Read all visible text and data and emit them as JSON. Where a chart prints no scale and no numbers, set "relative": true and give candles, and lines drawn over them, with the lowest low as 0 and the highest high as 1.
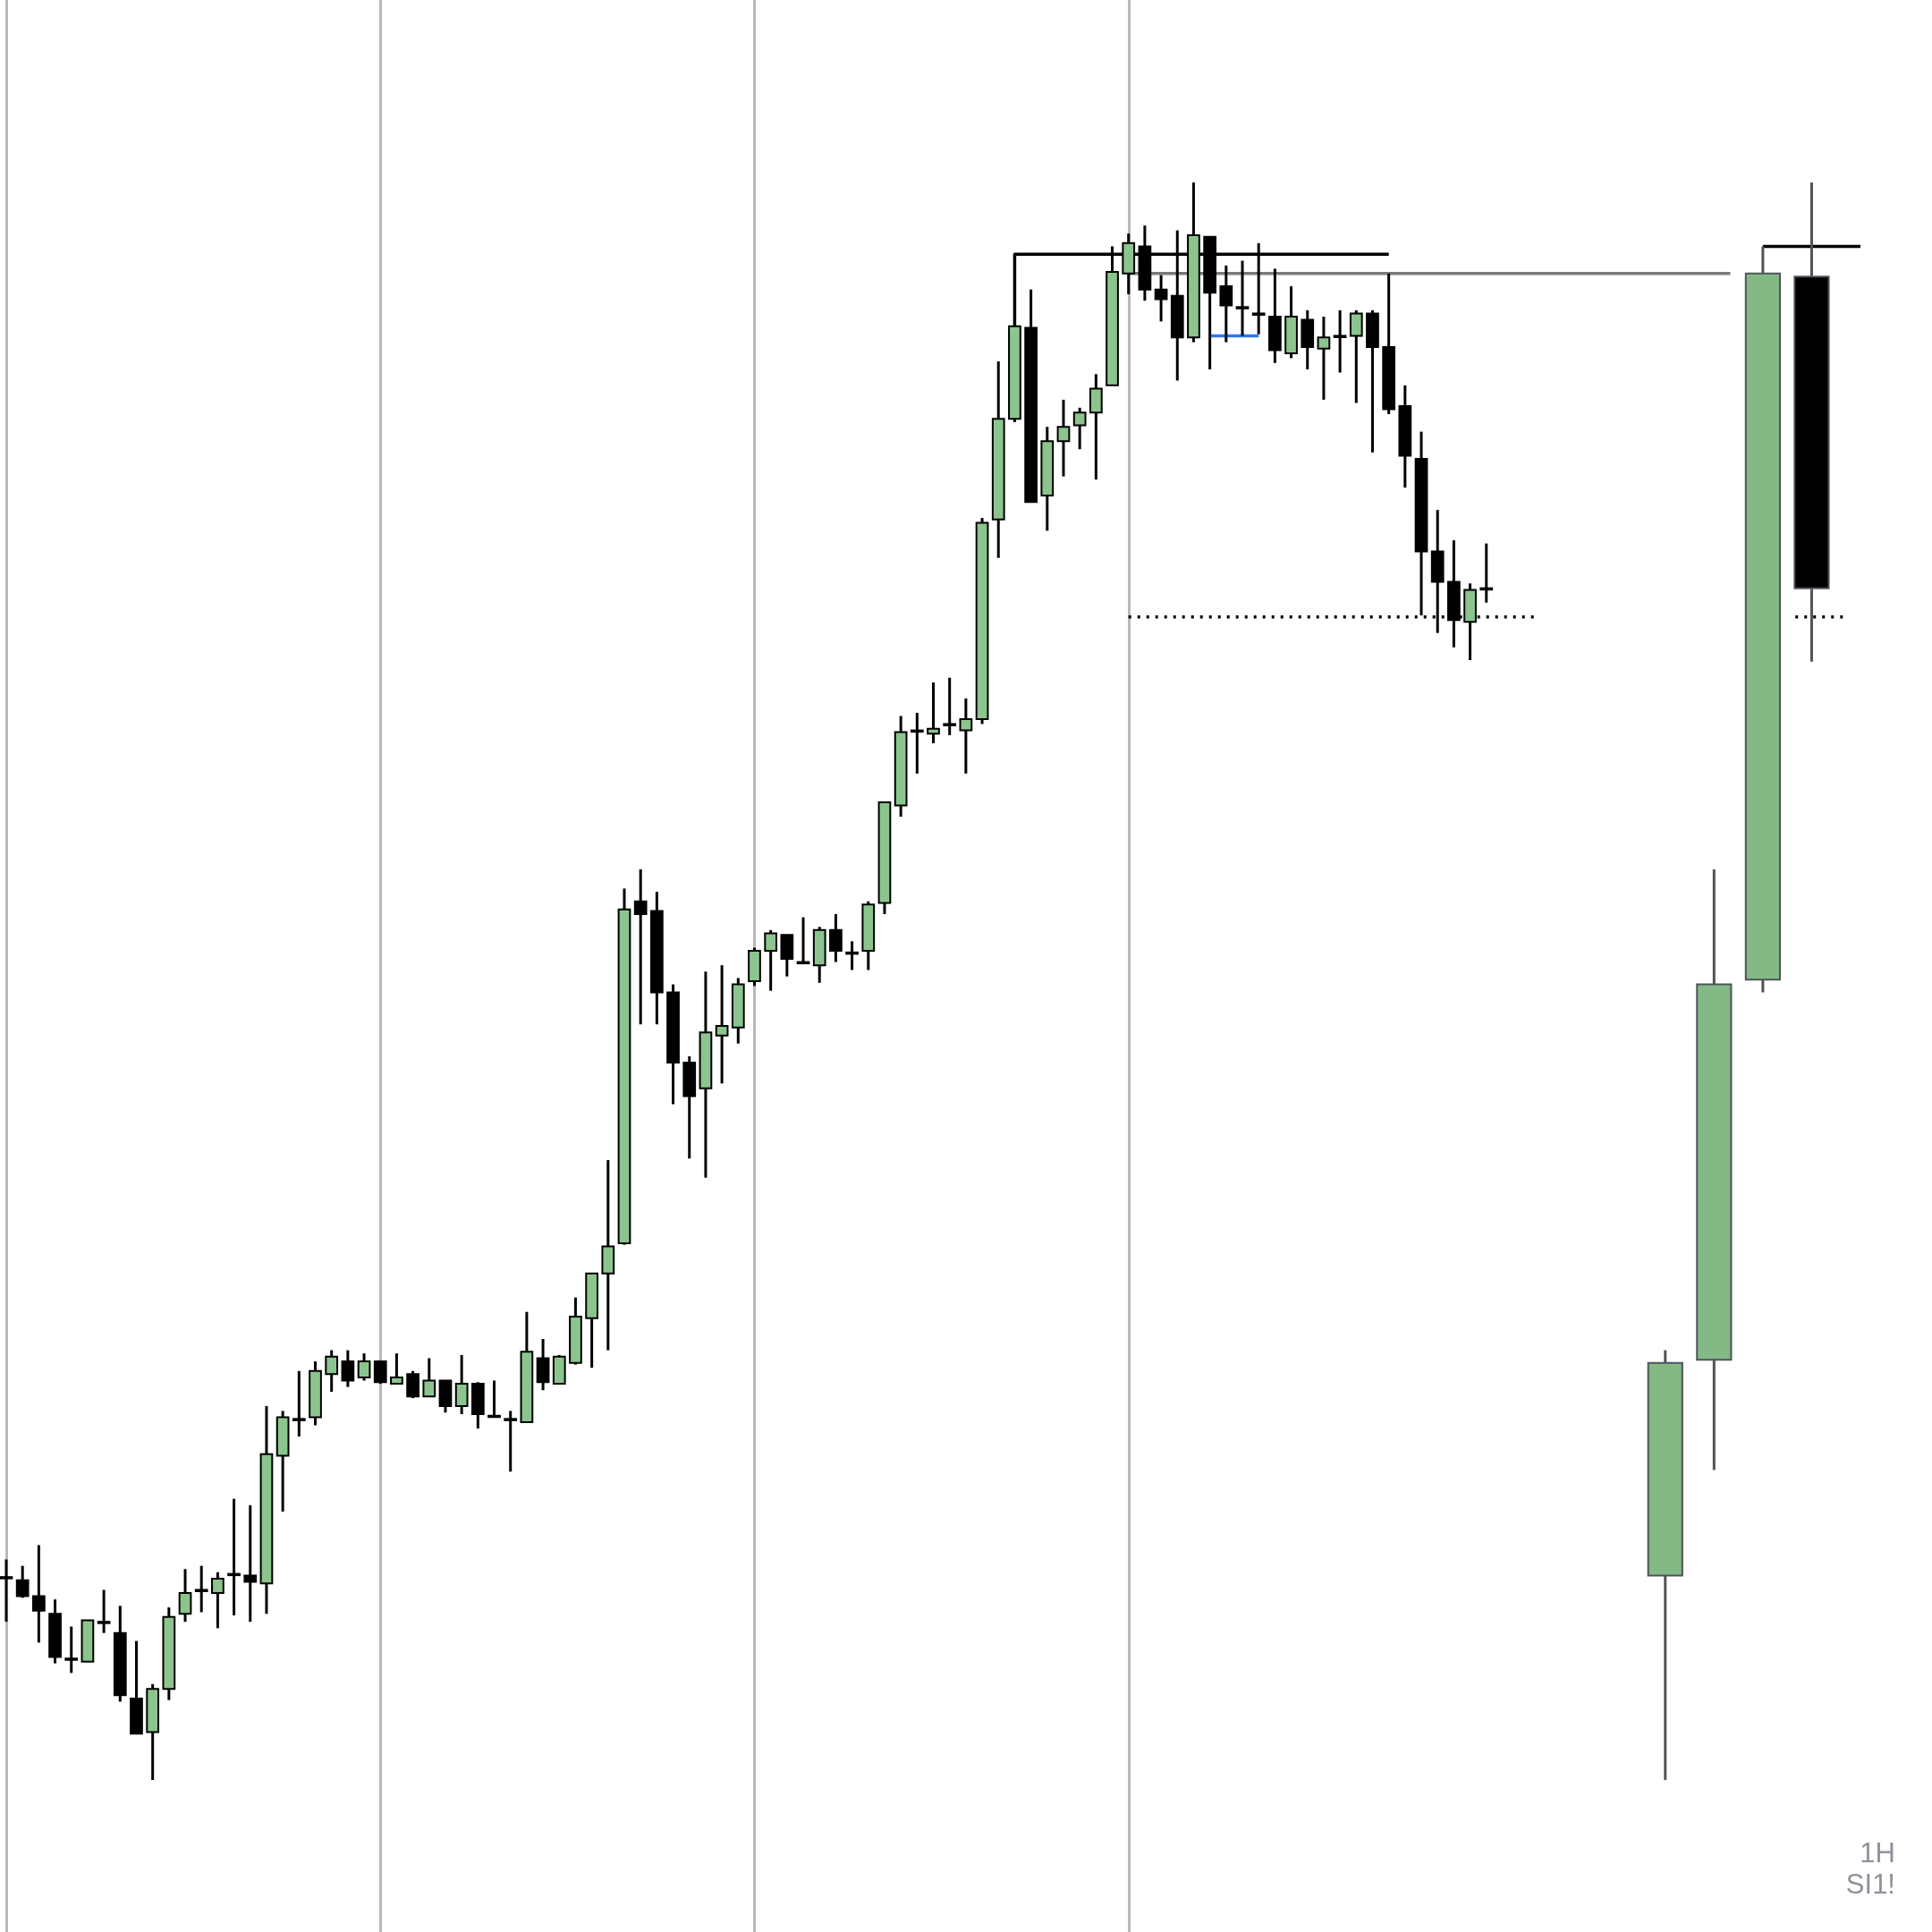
{
  "chart_data": {
    "type": "candlestick",
    "relative": true,
    "grid": "x",
    "categories": [
      null,
      null,
      null,
      null,
      null,
      null,
      null,
      null,
      null,
      null,
      null,
      null,
      null,
      null,
      null,
      null,
      null,
      null,
      null,
      null,
      null,
      null,
      null,
      null,
      null,
      null,
      null,
      null,
      null,
      null,
      null,
      null,
      null,
      null,
      null,
      null,
      null,
      null,
      null,
      null,
      null,
      null,
      null,
      null,
      null,
      null,
      null,
      null,
      null,
      null,
      null,
      null,
      null,
      null,
      null,
      null,
      null,
      null,
      null,
      null,
      null,
      null,
      null,
      null,
      null,
      null,
      null,
      null,
      null,
      null,
      null,
      null,
      null,
      null,
      null,
      null,
      null,
      null,
      null,
      null,
      null,
      null,
      null,
      null,
      null,
      null,
      null,
      null,
      null,
      null,
      null,
      null,
      null,
      null,
      null,
      null,
      null,
      null,
      null,
      null,
      null,
      null,
      null,
      null,
      null,
      null,
      null,
      null,
      null,
      null,
      null,
      null,
      null,
      null,
      null
    ],
    "annotations": [
      "1H",
      "SI1!"
    ],
    "series": [
      {
        "color": "#000000",
        "colors": [
          "#000000",
          "#000000",
          "#000000",
          "#000000",
          "#000000",
          "#8bc58d",
          "#000000",
          "#000000",
          "#000000",
          "#8bc58d",
          "#8bc58d",
          "#8bc58d",
          "#000000",
          "#8bc58d",
          "#000000",
          "#000000",
          "#8bc58d",
          "#8bc58d",
          "#000000",
          "#8bc58d",
          "#8bc58d",
          "#000000",
          "#8bc58d",
          "#000000",
          "#8bc58d",
          "#000000",
          "#8bc58d",
          "#000000",
          "#8bc58d",
          "#000000",
          "#000000",
          "#000000",
          "#8bc58d",
          "#000000",
          "#8bc58d",
          "#8bc58d",
          "#8bc58d",
          "#8bc58d",
          "#8bc58d",
          "#000000",
          "#000000",
          "#000000",
          "#000000",
          "#8bc58d",
          "#8bc58d",
          "#8bc58d",
          "#8bc58d",
          "#8bc58d",
          "#000000",
          "#000000",
          "#8bc58d",
          "#000000",
          "#000000",
          "#8bc58d",
          "#8bc58d",
          "#8bc58d",
          "#000000",
          "#8bc58d",
          "#000000",
          "#8bc58d",
          "#8bc58d",
          "#8bc58d",
          "#8bc58d",
          "#000000",
          "#8bc58d",
          "#8bc58d",
          "#8bc58d",
          "#8bc58d",
          "#8bc58d",
          "#8bc58d",
          "#000000",
          "#000000",
          "#000000",
          "#8bc58d",
          "#000000",
          "#000000",
          "#000000",
          "#000000",
          "#000000",
          "#8bc58d",
          "#000000",
          "#8bc58d",
          "#000000",
          "#8bc58d",
          "#000000",
          "#000000",
          "#000000",
          "#000000",
          "#000000",
          "#000000",
          "#8bc58d",
          "#000000",
          null,
          null,
          null,
          null,
          null,
          null,
          null,
          null,
          null,
          null,
          null,
          null,
          null,
          null,
          null,
          null,
          null,
          null,
          null,
          null,
          null,
          null,
          null
        ],
        "ohlc": [
          [
            0.127,
            0.138,
            0.099,
            0.127
          ],
          [
            0.125,
            0.134,
            0.114,
            0.115
          ],
          [
            0.115,
            0.147,
            0.086,
            0.106
          ],
          [
            0.104,
            0.113,
            0.073,
            0.077
          ],
          [
            0.076,
            0.096,
            0.067,
            0.076
          ],
          [
            0.074,
            0.1,
            0.074,
            0.1
          ],
          [
            0.099,
            0.119,
            0.092,
            0.099
          ],
          [
            0.092,
            0.109,
            0.049,
            0.053
          ],
          [
            0.051,
            0.087,
            0.029,
            0.029
          ],
          [
            0.03,
            0.06,
            0,
            0.057
          ],
          [
            0.057,
            0.108,
            0.05,
            0.102
          ],
          [
            0.104,
            0.132,
            0.099,
            0.117
          ],
          [
            0.119,
            0.134,
            0.105,
            0.119
          ],
          [
            0.117,
            0.13,
            0.095,
            0.126
          ],
          [
            0.129,
            0.176,
            0.103,
            0.129
          ],
          [
            0.128,
            0.172,
            0.099,
            0.124
          ],
          [
            0.123,
            0.234,
            0.104,
            0.204
          ],
          [
            0.203,
            0.231,
            0.168,
            0.227
          ],
          [
            0.226,
            0.256,
            0.215,
            0.226
          ],
          [
            0.227,
            0.262,
            0.222,
            0.256
          ],
          [
            0.254,
            0.269,
            0.243,
            0.265
          ],
          [
            0.262,
            0.269,
            0.246,
            0.25
          ],
          [
            0.252,
            0.267,
            0.25,
            0.262
          ],
          [
            0.262,
            0.262,
            0.248,
            0.249
          ],
          [
            0.248,
            0.267,
            0.248,
            0.252
          ],
          [
            0.254,
            0.256,
            0.239,
            0.24
          ],
          [
            0.24,
            0.264,
            0.24,
            0.25
          ],
          [
            0.25,
            0.25,
            0.23,
            0.234
          ],
          [
            0.234,
            0.266,
            0.229,
            0.248
          ],
          [
            0.248,
            0.249,
            0.22,
            0.229
          ],
          [
            0.228,
            0.25,
            0.228,
            0.228
          ],
          [
            0.226,
            0.231,
            0.193,
            0.226
          ],
          [
            0.224,
            0.293,
            0.224,
            0.268
          ],
          [
            0.264,
            0.276,
            0.244,
            0.249
          ],
          [
            0.248,
            0.266,
            0.248,
            0.265
          ],
          [
            0.261,
            0.302,
            0.26,
            0.29
          ],
          [
            0.289,
            0.317,
            0.258,
            0.317
          ],
          [
            0.317,
            0.388,
            0.269,
            0.334
          ],
          [
            0.336,
            0.558,
            0.335,
            0.545
          ],
          [
            0.55,
            0.57,
            0.473,
            0.542
          ],
          [
            0.544,
            0.556,
            0.473,
            0.493
          ],
          [
            0.493,
            0.498,
            0.423,
            0.449
          ],
          [
            0.449,
            0.453,
            0.389,
            0.428
          ],
          [
            0.433,
            0.506,
            0.377,
            0.468
          ],
          [
            0.466,
            0.51,
            0.436,
            0.472
          ],
          [
            0.471,
            0.502,
            0.461,
            0.498
          ],
          [
            0.5,
            0.521,
            0.497,
            0.519
          ],
          [
            0.519,
            0.532,
            0.494,
            0.53
          ],
          [
            0.529,
            0.529,
            0.503,
            0.514
          ],
          [
            0.512,
            0.54,
            0.512,
            0.512
          ],
          [
            0.51,
            0.534,
            0.499,
            0.532
          ],
          [
            0.532,
            0.542,
            0.512,
            0.519
          ],
          [
            0.518,
            0.525,
            0.507,
            0.518
          ],
          [
            0.519,
            0.55,
            0.507,
            0.548
          ],
          [
            0.549,
            0.612,
            0.542,
            0.612
          ],
          [
            0.61,
            0.666,
            0.603,
            0.656
          ],
          [
            0.657,
            0.668,
            0.63,
            0.657
          ],
          [
            0.655,
            0.687,
            0.649,
            0.658
          ],
          [
            0.661,
            0.69,
            0.654,
            0.661
          ],
          [
            0.657,
            0.677,
            0.63,
            0.664
          ],
          [
            0.664,
            0.79,
            0.661,
            0.787
          ],
          [
            0.789,
            0.888,
            0.765,
            0.852
          ],
          [
            0.852,
            0.91,
            0.85,
            0.91
          ],
          [
            0.909,
            0.933,
            0.8,
            0.8
          ],
          [
            0.804,
            0.847,
            0.782,
            0.838
          ],
          [
            0.838,
            0.864,
            0.816,
            0.847
          ],
          [
            0.848,
            0.859,
            0.833,
            0.856
          ],
          [
            0.856,
            0.88,
            0.814,
            0.871
          ],
          [
            0.873,
            0.96,
            0.873,
            0.944
          ],
          [
            0.943,
            0.968,
            0.93,
            0.962
          ],
          [
            0.96,
            0.973,
            0.926,
            0.933
          ],
          [
            0.933,
            0.942,
            0.913,
            0.927
          ],
          [
            0.929,
            0.97,
            0.876,
            0.903
          ],
          [
            0.903,
            1,
            0.9,
            0.967
          ],
          [
            0.966,
            0.966,
            0.883,
            0.931
          ],
          [
            0.935,
            0.948,
            0.9,
            0.923
          ],
          [
            0.922,
            0.951,
            0.904,
            0.922
          ],
          [
            0.918,
            0.962,
            0.905,
            0.918
          ],
          [
            0.916,
            0.946,
            0.887,
            0.895
          ],
          [
            0.893,
            0.935,
            0.89,
            0.916
          ],
          [
            0.914,
            0.92,
            0.883,
            0.897
          ],
          [
            0.896,
            0.916,
            0.864,
            0.903
          ],
          [
            0.904,
            0.92,
            0.881,
            0.904
          ],
          [
            0.904,
            0.92,
            0.862,
            0.918
          ],
          [
            0.918,
            0.92,
            0.831,
            0.897
          ],
          [
            0.897,
            0.943,
            0.855,
            0.858
          ],
          [
            0.86,
            0.873,
            0.809,
            0.829
          ],
          [
            0.827,
            0.844,
            0.729,
            0.769
          ],
          [
            0.769,
            0.795,
            0.718,
            0.75
          ],
          [
            0.75,
            0.776,
            0.709,
            0.726
          ],
          [
            0.725,
            0.749,
            0.701,
            0.745
          ],
          [
            0.746,
            0.774,
            0.737,
            0.746
          ],
          null,
          null,
          null,
          null,
          null,
          null,
          null,
          null,
          null,
          null,
          null,
          null,
          null,
          null,
          null,
          null,
          null,
          null,
          null,
          null,
          null,
          null,
          null
        ]
      },
      {
        "color": "#4f545c",
        "colors": [
          null,
          null,
          null,
          null,
          null,
          null,
          null,
          null,
          null,
          null,
          null,
          null,
          null,
          null,
          null,
          null,
          null,
          null,
          null,
          null,
          null,
          null,
          null,
          null,
          null,
          null,
          null,
          null,
          null,
          null,
          null,
          null,
          null,
          null,
          null,
          null,
          null,
          null,
          null,
          null,
          null,
          null,
          null,
          null,
          null,
          null,
          null,
          null,
          null,
          null,
          null,
          null,
          null,
          null,
          null,
          null,
          null,
          null,
          null,
          null,
          null,
          null,
          null,
          null,
          null,
          null,
          null,
          null,
          null,
          null,
          null,
          null,
          null,
          null,
          null,
          null,
          null,
          null,
          null,
          null,
          null,
          null,
          null,
          null,
          null,
          null,
          null,
          null,
          null,
          null,
          null,
          null,
          null,
          null,
          null,
          null,
          null,
          null,
          null,
          null,
          null,
          null,
          "#82b984",
          null,
          null,
          "#82b984",
          null,
          null,
          "#82b984",
          null,
          null,
          "#000000",
          null,
          null,
          null
        ],
        "ohlc": [
          null,
          null,
          null,
          null,
          null,
          null,
          null,
          null,
          null,
          null,
          null,
          null,
          null,
          null,
          null,
          null,
          null,
          null,
          null,
          null,
          null,
          null,
          null,
          null,
          null,
          null,
          null,
          null,
          null,
          null,
          null,
          null,
          null,
          null,
          null,
          null,
          null,
          null,
          null,
          null,
          null,
          null,
          null,
          null,
          null,
          null,
          null,
          null,
          null,
          null,
          null,
          null,
          null,
          null,
          null,
          null,
          null,
          null,
          null,
          null,
          null,
          null,
          null,
          null,
          null,
          null,
          null,
          null,
          null,
          null,
          null,
          null,
          null,
          null,
          null,
          null,
          null,
          null,
          null,
          null,
          null,
          null,
          null,
          null,
          null,
          null,
          null,
          null,
          null,
          null,
          null,
          null,
          null,
          null,
          null,
          null,
          null,
          null,
          null,
          null,
          null,
          null,
          [
            0.128,
            0.269,
            0,
            0.261
          ],
          null,
          null,
          [
            0.263,
            0.57,
            0.194,
            0.498
          ],
          null,
          null,
          [
            0.501,
            0.96,
            0.493,
            0.943
          ],
          null,
          null,
          [
            0.941,
            1,
            0.7,
            0.746
          ],
          null,
          null,
          null
        ]
      },
      {
        "type": "step",
        "color": "#000000",
        "values": [
          null,
          null,
          null,
          null,
          null,
          null,
          null,
          null,
          null,
          null,
          null,
          null,
          null,
          null,
          null,
          null,
          null,
          null,
          null,
          null,
          null,
          null,
          null,
          null,
          null,
          null,
          null,
          null,
          null,
          null,
          null,
          null,
          null,
          null,
          null,
          null,
          null,
          null,
          null,
          null,
          null,
          null,
          null,
          null,
          null,
          null,
          null,
          null,
          null,
          null,
          null,
          null,
          null,
          null,
          null,
          null,
          null,
          null,
          null,
          null,
          null,
          null,
          0.91,
          0.955,
          0.955,
          0.955,
          0.955,
          0.955,
          0.955,
          null,
          null,
          0.955,
          0.955,
          null,
          null,
          0.955,
          0.955,
          0.955,
          0.955,
          0.955,
          0.955,
          0.955,
          0.955,
          0.955,
          0.955,
          0.955,
          null,
          null,
          null,
          null,
          null,
          null,
          null,
          null,
          null,
          null,
          null,
          null,
          null,
          null,
          null,
          null,
          null,
          null,
          null,
          null,
          null,
          null,
          null,
          null,
          null,
          null,
          null,
          null,
          null
        ]
      },
      {
        "type": "line",
        "color": "#7a7a7a",
        "values": [
          null,
          null,
          null,
          null,
          null,
          null,
          null,
          null,
          null,
          null,
          null,
          null,
          null,
          null,
          null,
          null,
          null,
          null,
          null,
          null,
          null,
          null,
          null,
          null,
          null,
          null,
          null,
          null,
          null,
          null,
          null,
          null,
          null,
          null,
          null,
          null,
          null,
          null,
          null,
          null,
          null,
          null,
          null,
          null,
          null,
          null,
          null,
          null,
          null,
          null,
          null,
          null,
          null,
          null,
          null,
          null,
          null,
          null,
          null,
          null,
          null,
          null,
          null,
          null,
          null,
          null,
          null,
          null,
          null,
          0.943,
          null,
          0.943,
          0.943,
          null,
          null,
          0.943,
          0.943,
          0.943,
          0.943,
          0.943,
          0.943,
          0.943,
          0.943,
          0.943,
          0.943,
          0.943,
          0.943,
          0.943,
          0.943,
          0.943,
          0.943,
          0.943,
          0.943,
          0.943,
          0.943,
          0.943,
          0.943,
          0.943,
          0.943,
          0.943,
          0.943,
          0.943,
          0.943,
          0.943,
          0.943,
          0.943,
          0.943,
          null,
          null,
          null,
          null,
          null,
          null,
          null,
          null
        ]
      },
      {
        "type": "line",
        "color": "#2f78f0",
        "values": [
          null,
          null,
          null,
          null,
          null,
          null,
          null,
          null,
          null,
          null,
          null,
          null,
          null,
          null,
          null,
          null,
          null,
          null,
          null,
          null,
          null,
          null,
          null,
          null,
          null,
          null,
          null,
          null,
          null,
          null,
          null,
          null,
          null,
          null,
          null,
          null,
          null,
          null,
          null,
          null,
          null,
          null,
          null,
          null,
          null,
          null,
          null,
          null,
          null,
          null,
          null,
          null,
          null,
          null,
          null,
          null,
          null,
          null,
          null,
          null,
          null,
          null,
          null,
          null,
          null,
          null,
          null,
          null,
          null,
          null,
          null,
          null,
          null,
          null,
          0.904,
          0.904,
          0.904,
          0.904,
          null,
          null,
          null,
          null,
          null,
          null,
          null,
          null,
          null,
          null,
          null,
          null,
          null,
          null,
          null,
          null,
          null,
          null,
          null,
          null,
          null,
          null,
          null,
          null,
          null,
          null,
          null,
          null,
          null,
          null,
          null,
          null,
          null,
          null,
          null,
          null,
          null
        ]
      },
      {
        "type": "line",
        "color": "#000000",
        "line_style": "dotted",
        "values": [
          null,
          null,
          null,
          null,
          null,
          null,
          null,
          null,
          null,
          null,
          null,
          null,
          null,
          null,
          null,
          null,
          null,
          null,
          null,
          null,
          null,
          null,
          null,
          null,
          null,
          null,
          null,
          null,
          null,
          null,
          null,
          null,
          null,
          null,
          null,
          null,
          null,
          null,
          null,
          null,
          null,
          null,
          null,
          null,
          null,
          null,
          null,
          null,
          null,
          null,
          null,
          null,
          null,
          null,
          null,
          null,
          null,
          null,
          null,
          null,
          null,
          null,
          null,
          null,
          null,
          null,
          null,
          null,
          null,
          0.728,
          0.728,
          0.728,
          0.728,
          0.728,
          0.728,
          0.728,
          0.728,
          0.728,
          0.728,
          0.728,
          0.728,
          0.728,
          0.728,
          0.728,
          0.728,
          0.728,
          0.728,
          0.728,
          0.728,
          null,
          null,
          0.728,
          0.728,
          0.728,
          0.728,
          null,
          null,
          null,
          null,
          null,
          null,
          null,
          null,
          null,
          null,
          null,
          null,
          null,
          null,
          null,
          null,
          null,
          null,
          null,
          null
        ]
      },
      {
        "type": "line",
        "color": "#000000",
        "line_style": "dotted",
        "values": [
          null,
          null,
          null,
          null,
          null,
          null,
          null,
          null,
          null,
          null,
          null,
          null,
          null,
          null,
          null,
          null,
          null,
          null,
          null,
          null,
          null,
          null,
          null,
          null,
          null,
          null,
          null,
          null,
          null,
          null,
          null,
          null,
          null,
          null,
          null,
          null,
          null,
          null,
          null,
          null,
          null,
          null,
          null,
          null,
          null,
          null,
          null,
          null,
          null,
          null,
          null,
          null,
          null,
          null,
          null,
          null,
          null,
          null,
          null,
          null,
          null,
          null,
          null,
          null,
          null,
          null,
          null,
          null,
          null,
          null,
          null,
          null,
          null,
          null,
          null,
          null,
          null,
          null,
          null,
          null,
          null,
          null,
          null,
          null,
          null,
          null,
          null,
          null,
          null,
          null,
          null,
          null,
          null,
          null,
          null,
          null,
          null,
          null,
          null,
          null,
          null,
          null,
          null,
          null,
          null,
          null,
          null,
          null,
          null,
          null,
          0.728,
          0.728,
          0.728,
          0.728,
          null
        ]
      },
      {
        "type": "line",
        "color": "#000000",
        "values": [
          null,
          null,
          null,
          null,
          null,
          null,
          null,
          null,
          null,
          null,
          null,
          null,
          null,
          null,
          null,
          null,
          null,
          null,
          null,
          null,
          null,
          null,
          null,
          null,
          null,
          null,
          null,
          null,
          null,
          null,
          null,
          null,
          null,
          null,
          null,
          null,
          null,
          null,
          null,
          null,
          null,
          null,
          null,
          null,
          null,
          null,
          null,
          null,
          null,
          null,
          null,
          null,
          null,
          null,
          null,
          null,
          null,
          null,
          null,
          null,
          null,
          null,
          null,
          null,
          null,
          null,
          null,
          null,
          null,
          null,
          null,
          null,
          null,
          null,
          null,
          null,
          null,
          null,
          null,
          null,
          null,
          null,
          null,
          null,
          null,
          null,
          null,
          null,
          null,
          null,
          null,
          null,
          null,
          null,
          null,
          null,
          null,
          null,
          null,
          null,
          null,
          null,
          null,
          null,
          null,
          null,
          null,
          null,
          0.96,
          0.96,
          0.96,
          0.96,
          0.96,
          0.96,
          0.96
        ]
      }
    ]
  }
}
